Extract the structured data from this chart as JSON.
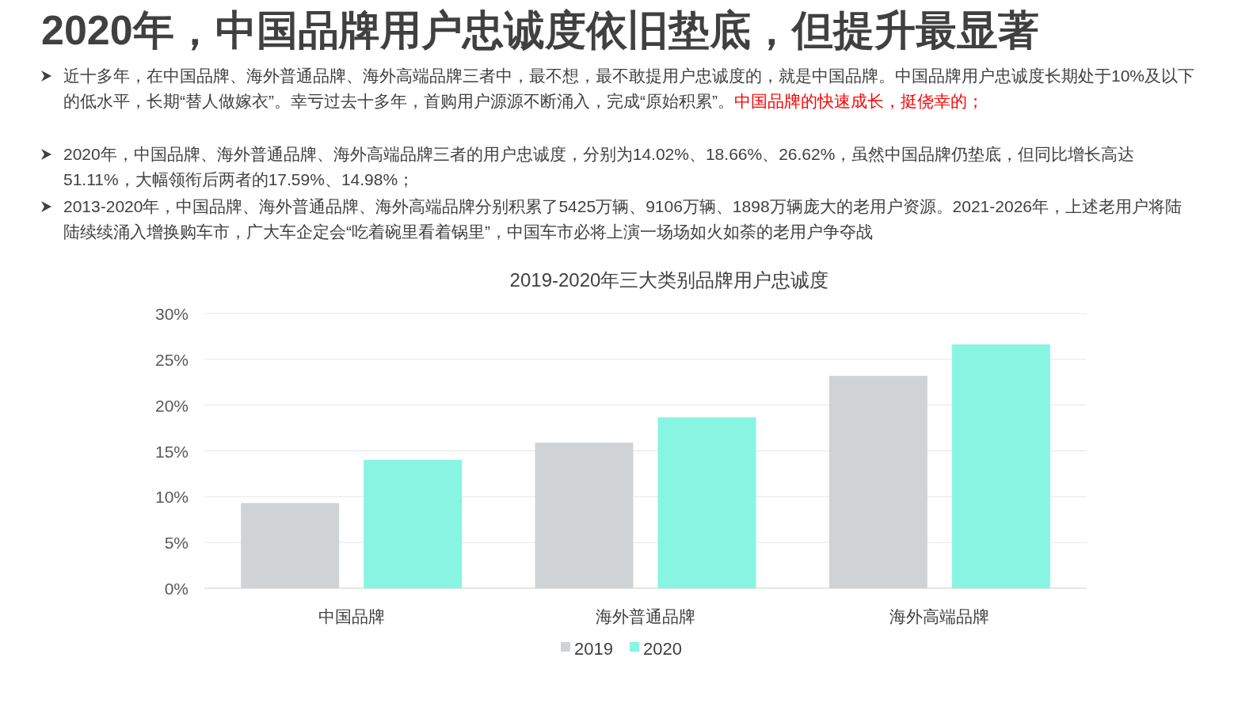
{
  "chart_data": {
    "type": "bar",
    "title": "2019-2020年三大类别品牌用户忠诚度",
    "subtitle": "2020年，中国品牌用户忠诚度依旧垫底，但提升最显著",
    "annotations": [
      "近十多年，在中国品牌、海外普通品牌、海外高端品牌三者中，最不想，最不敢提用户忠诚度的，就是中国品牌。中国品牌用户忠诚度长期处于10%及以下的低水平，长期“替人做嫁衣”。幸亏过去十多年，首购用户源源不断涌入，完成“原始积累”。",
      "中国品牌的快速成长，挺侥幸的；",
      "2020年，中国品牌、海外普通品牌、海外高端品牌三者的用户忠诚度，分别为14.02%、18.66%、26.62%，虽然中国品牌仍垫底，但同比增长高达51.11%，大幅领衔后两者的17.59%、14.98%；",
      "2013-2020年，中国品牌、海外普通品牌、海外高端品牌分别积累了5425万辆、9106万辆、1898万辆庞大的老用户资源。2021-2026年，上述老用户将陆陆续续涌入增换购车市，广大车企定会“吃着碗里看着锅里”，中国车市必将上演一场场如火如荼的老用户争夺战"
    ],
    "categories": [
      "中国品牌",
      "海外普通品牌",
      "海外高端品牌"
    ],
    "series": [
      {
        "name": "2019",
        "color": "#d0d3d6",
        "values": [
          9.3,
          15.9,
          23.2
        ]
      },
      {
        "name": "2020",
        "color": "#87f5e2",
        "values": [
          14.02,
          18.66,
          26.62
        ]
      }
    ],
    "ylim": [
      0,
      30
    ],
    "yticks": [
      {
        "value": 0,
        "label": "0%"
      },
      {
        "value": 5,
        "label": "5%"
      },
      {
        "value": 10,
        "label": "10%"
      },
      {
        "value": 15,
        "label": "15%"
      },
      {
        "value": 20,
        "label": "20%"
      },
      {
        "value": 25,
        "label": "25%"
      },
      {
        "value": 30,
        "label": "30%"
      }
    ],
    "grid": "y",
    "legend": "bottom"
  }
}
